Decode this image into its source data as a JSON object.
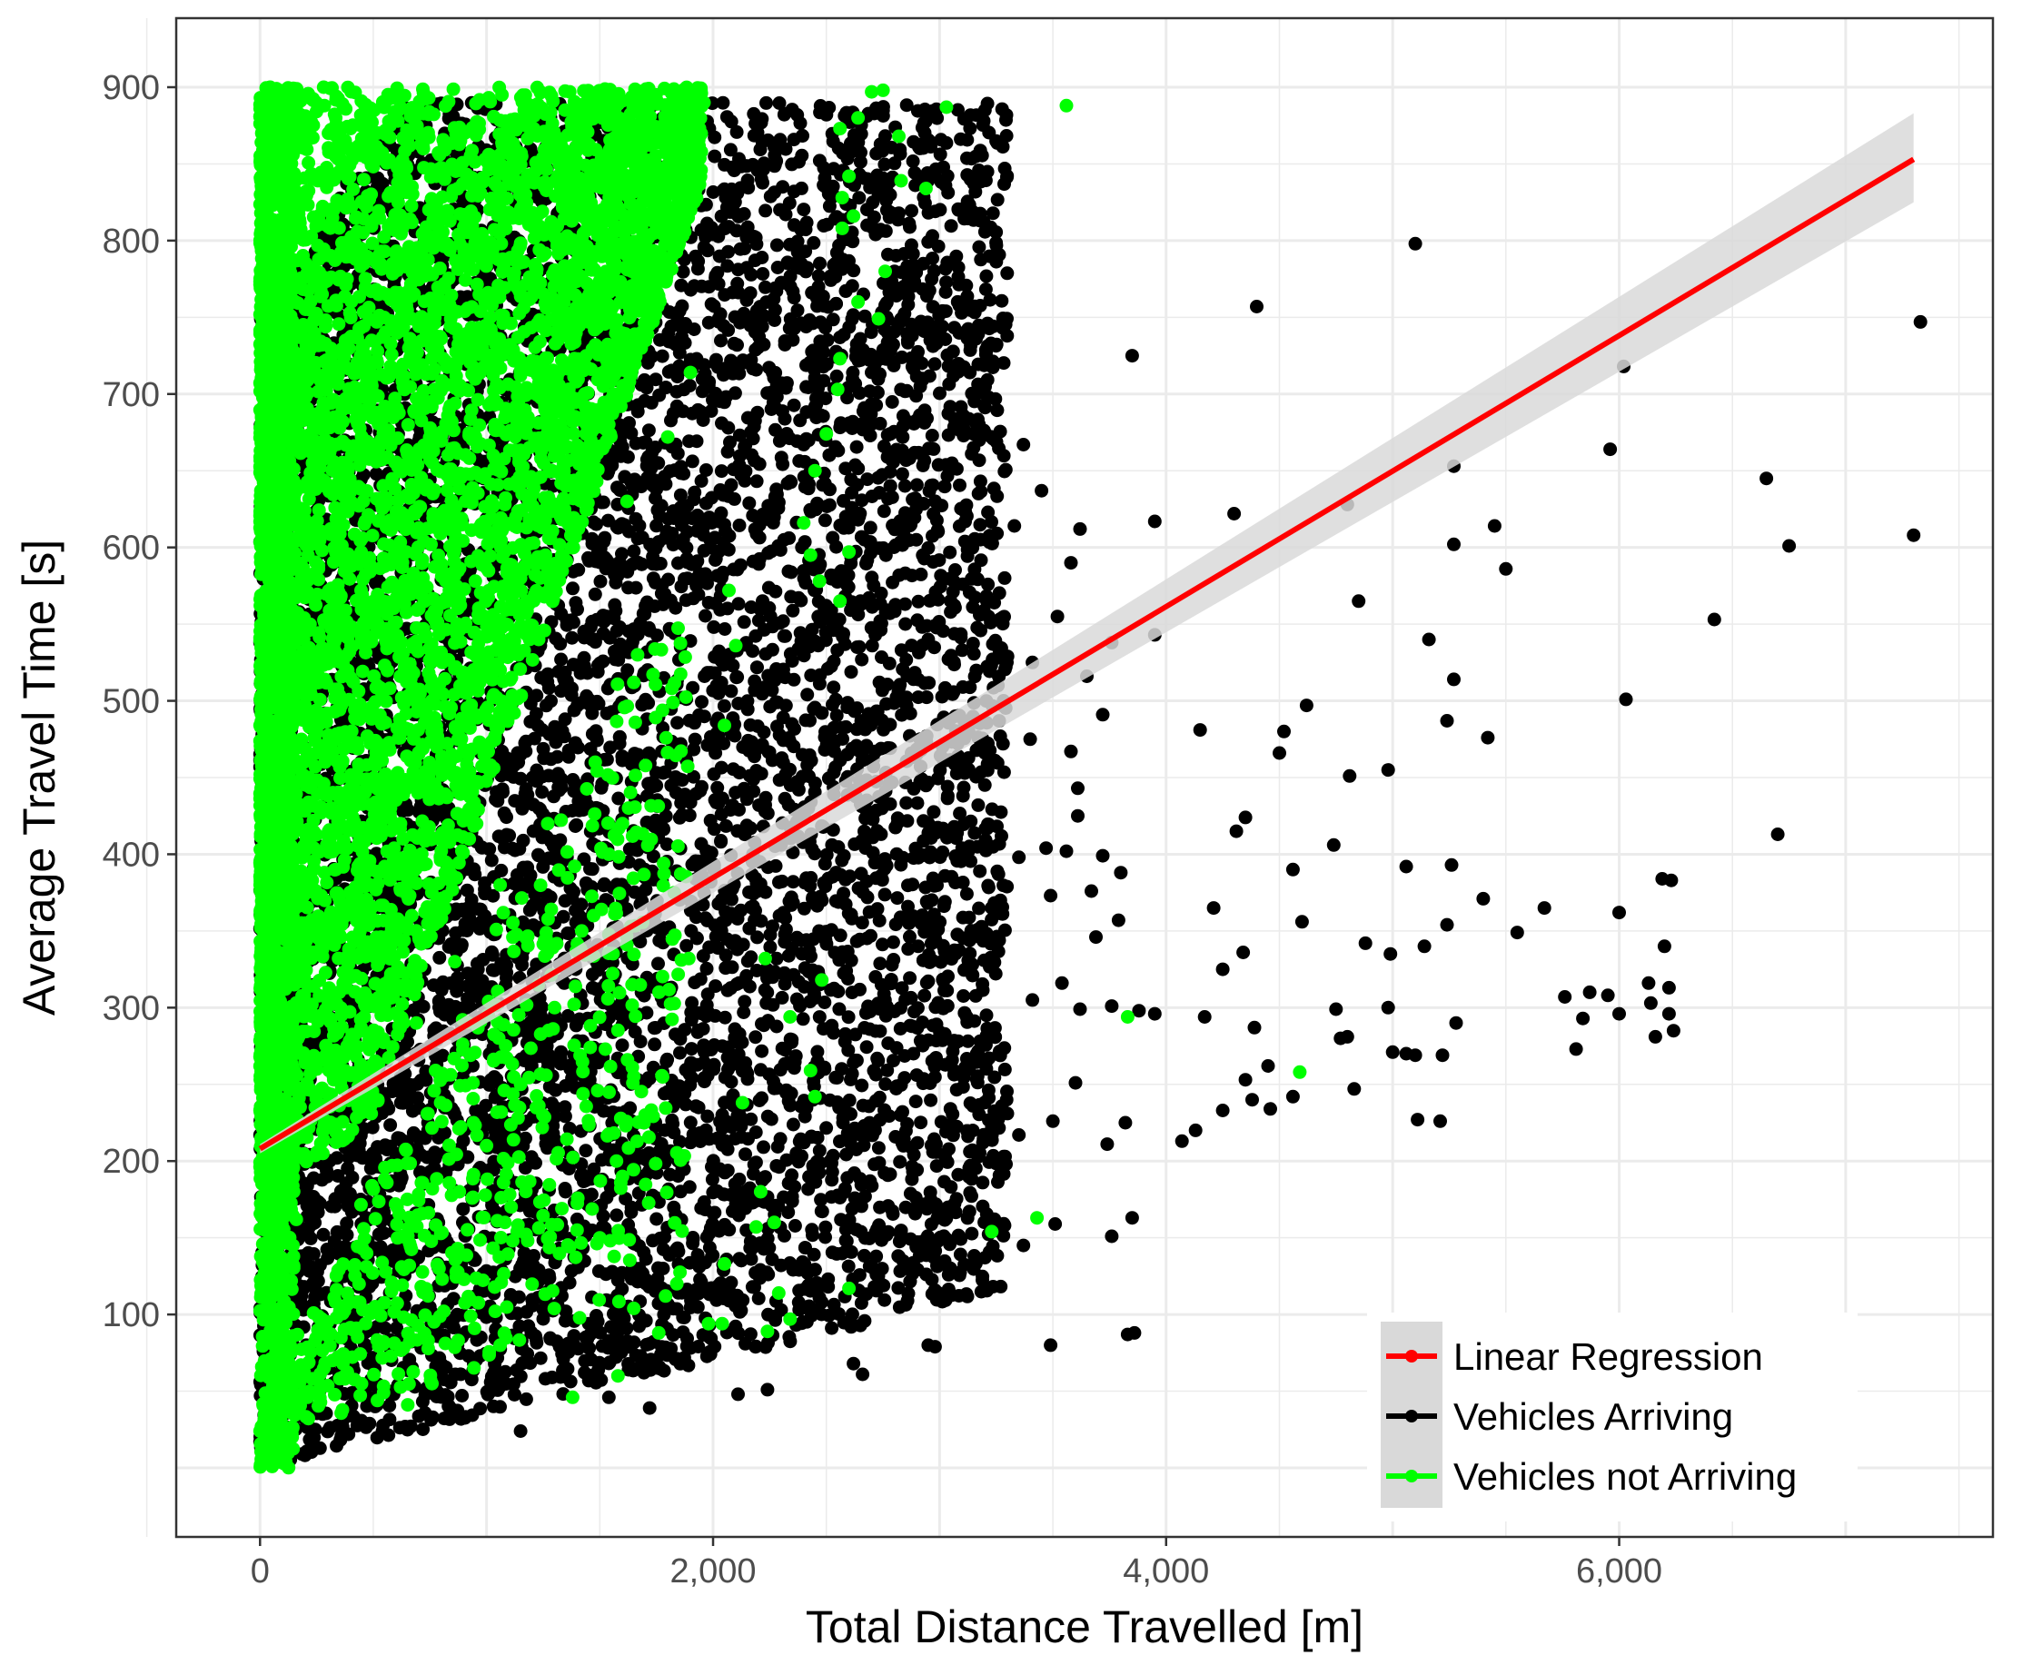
{
  "chart_data": {
    "type": "scatter",
    "xlabel": "Total Distance Travelled [m]",
    "ylabel": "Average Travel Time [s]",
    "xlim": [
      -370,
      7650
    ],
    "ylim": [
      -45,
      945
    ],
    "x_ticks": [
      0,
      2000,
      4000,
      6000
    ],
    "x_tick_labels": [
      "0",
      "2,000",
      "4,000",
      "6,000"
    ],
    "y_ticks": [
      100,
      200,
      300,
      400,
      500,
      600,
      700,
      800,
      900
    ],
    "y_tick_labels": [
      "100",
      "200",
      "300",
      "400",
      "500",
      "600",
      "700",
      "800",
      "900"
    ],
    "grid": true,
    "legend_position": "bottom-right",
    "colors": {
      "arriving": "#000000",
      "not_arriving": "#00ff00",
      "regression": "#ff0000",
      "confidence_band": "#d9d9d9",
      "grid": "#ebebeb",
      "panel_border": "#333333"
    },
    "series": [
      {
        "name": "Vehicles Arriving",
        "kind": "points",
        "color": "#000000",
        "points": [
          [
            3200,
            885
          ],
          [
            5100,
            798
          ],
          [
            4400,
            757
          ],
          [
            3850,
            725
          ],
          [
            6020,
            718
          ],
          [
            7330,
            747
          ],
          [
            5960,
            664
          ],
          [
            6650,
            645
          ],
          [
            5270,
            653
          ],
          [
            4800,
            628
          ],
          [
            4300,
            622
          ],
          [
            3950,
            617
          ],
          [
            7300,
            608
          ],
          [
            6750,
            601
          ],
          [
            5450,
            614
          ],
          [
            5500,
            586
          ],
          [
            5270,
            602
          ],
          [
            4850,
            565
          ],
          [
            6420,
            553
          ],
          [
            5160,
            540
          ],
          [
            3950,
            543
          ],
          [
            6030,
            501
          ],
          [
            5270,
            514
          ],
          [
            5240,
            487
          ],
          [
            4620,
            497
          ],
          [
            4520,
            480
          ],
          [
            4150,
            481
          ],
          [
            5420,
            476
          ],
          [
            4500,
            466
          ],
          [
            3720,
            491
          ],
          [
            4810,
            451
          ],
          [
            4980,
            455
          ],
          [
            6700,
            413
          ],
          [
            4350,
            424
          ],
          [
            4310,
            415
          ],
          [
            4740,
            406
          ],
          [
            5260,
            393
          ],
          [
            5060,
            392
          ],
          [
            4560,
            390
          ],
          [
            3610,
            443
          ],
          [
            6190,
            384
          ],
          [
            6230,
            383
          ],
          [
            5400,
            371
          ],
          [
            5670,
            365
          ],
          [
            5550,
            349
          ],
          [
            4210,
            365
          ],
          [
            4880,
            342
          ],
          [
            5240,
            354
          ],
          [
            6000,
            362
          ],
          [
            5140,
            340
          ],
          [
            4990,
            335
          ],
          [
            4340,
            336
          ],
          [
            4600,
            356
          ],
          [
            6200,
            340
          ],
          [
            6130,
            316
          ],
          [
            6220,
            313
          ],
          [
            5950,
            308
          ],
          [
            5870,
            310
          ],
          [
            5760,
            307
          ],
          [
            4250,
            325
          ],
          [
            3950,
            296
          ],
          [
            4750,
            299
          ],
          [
            4980,
            300
          ],
          [
            6140,
            303
          ],
          [
            6220,
            296
          ],
          [
            6000,
            296
          ],
          [
            5840,
            293
          ],
          [
            5280,
            290
          ],
          [
            4800,
            281
          ],
          [
            4390,
            287
          ],
          [
            4770,
            280
          ],
          [
            4170,
            294
          ],
          [
            5060,
            270
          ],
          [
            5100,
            269
          ],
          [
            5220,
            269
          ],
          [
            4450,
            262
          ],
          [
            4350,
            253
          ],
          [
            5000,
            271
          ],
          [
            4830,
            247
          ],
          [
            4560,
            242
          ],
          [
            4460,
            234
          ],
          [
            4380,
            240
          ],
          [
            4250,
            233
          ],
          [
            4130,
            220
          ],
          [
            4070,
            213
          ],
          [
            5110,
            227
          ],
          [
            5210,
            226
          ],
          [
            5810,
            273
          ],
          [
            6160,
            281
          ],
          [
            6240,
            285
          ],
          [
            3860,
            88
          ],
          [
            3830,
            87
          ],
          [
            3490,
            80
          ],
          [
            2980,
            79
          ],
          [
            2950,
            80
          ],
          [
            2660,
            61
          ],
          [
            2620,
            68
          ],
          [
            2110,
            48
          ],
          [
            2240,
            51
          ],
          [
            1720,
            39
          ],
          [
            1540,
            46
          ],
          [
            1150,
            24
          ],
          [
            2680,
            810
          ],
          [
            2590,
            805
          ],
          [
            2780,
            770
          ],
          [
            3080,
            760
          ],
          [
            3000,
            740
          ],
          [
            2900,
            745
          ],
          [
            3150,
            665
          ],
          [
            3370,
            667
          ],
          [
            3450,
            637
          ],
          [
            3330,
            614
          ],
          [
            3620,
            612
          ],
          [
            3580,
            590
          ],
          [
            3520,
            555
          ],
          [
            3300,
            529
          ],
          [
            3100,
            533
          ],
          [
            2950,
            540
          ],
          [
            3410,
            525
          ],
          [
            3760,
            538
          ],
          [
            3650,
            516
          ],
          [
            3400,
            475
          ],
          [
            3580,
            467
          ],
          [
            3200,
            466
          ],
          [
            3280,
            472
          ],
          [
            3610,
            425
          ],
          [
            3470,
            404
          ],
          [
            3350,
            398
          ],
          [
            3560,
            402
          ],
          [
            3720,
            399
          ],
          [
            3670,
            376
          ],
          [
            3800,
            388
          ],
          [
            3490,
            373
          ],
          [
            3260,
            387
          ],
          [
            3690,
            346
          ],
          [
            3790,
            357
          ],
          [
            3540,
            316
          ],
          [
            3410,
            305
          ],
          [
            3620,
            299
          ],
          [
            3760,
            301
          ],
          [
            3880,
            298
          ],
          [
            3600,
            251
          ],
          [
            3820,
            225
          ],
          [
            3740,
            211
          ],
          [
            3500,
            226
          ],
          [
            3350,
            217
          ],
          [
            3760,
            151
          ],
          [
            3370,
            145
          ],
          [
            3850,
            163
          ],
          [
            3510,
            159
          ]
        ],
        "dense_regions": [
          {
            "wedge": "arrival-fan",
            "x_min": 0,
            "x_max": 3400,
            "y_min": 0,
            "y_max": 890
          }
        ]
      },
      {
        "name": "Vehicles not Arriving",
        "kind": "points",
        "color": "#00ff00",
        "points": [
          [
            3560,
            888
          ],
          [
            3030,
            887
          ],
          [
            2750,
            898
          ],
          [
            2700,
            897
          ],
          [
            2640,
            880
          ],
          [
            2820,
            868
          ],
          [
            2560,
            873
          ],
          [
            2600,
            842
          ],
          [
            2570,
            828
          ],
          [
            2570,
            808
          ],
          [
            2620,
            816
          ],
          [
            2940,
            834
          ],
          [
            2830,
            839
          ],
          [
            2760,
            780
          ],
          [
            2730,
            749
          ],
          [
            2640,
            760
          ],
          [
            2560,
            723
          ],
          [
            2550,
            703
          ],
          [
            2500,
            674
          ],
          [
            2450,
            650
          ],
          [
            2400,
            616
          ],
          [
            2430,
            595
          ],
          [
            2560,
            565
          ],
          [
            2470,
            578
          ],
          [
            2600,
            597
          ],
          [
            2100,
            536
          ],
          [
            2050,
            484
          ],
          [
            2070,
            572
          ],
          [
            2600,
            117
          ],
          [
            3230,
            154
          ],
          [
            3430,
            163
          ],
          [
            4590,
            258
          ],
          [
            3830,
            294
          ],
          [
            2230,
            332
          ],
          [
            2480,
            318
          ],
          [
            2340,
            294
          ],
          [
            2430,
            259
          ],
          [
            2450,
            242
          ],
          [
            2130,
            238
          ],
          [
            2190,
            157
          ],
          [
            2040,
            94
          ],
          [
            2210,
            180
          ],
          [
            2270,
            160
          ],
          [
            2050,
            133
          ],
          [
            2340,
            97
          ],
          [
            2240,
            89
          ],
          [
            2290,
            114
          ],
          [
            1980,
            94
          ],
          [
            1840,
            120
          ],
          [
            1790,
            112
          ],
          [
            1760,
            88
          ],
          [
            1650,
            104
          ],
          [
            1580,
            60
          ],
          [
            1380,
            46
          ],
          [
            1060,
            80
          ],
          [
            930,
            99
          ],
          [
            790,
            130
          ],
          [
            650,
            175
          ],
          [
            560,
            186
          ],
          [
            440,
            108
          ],
          [
            320,
            70
          ],
          [
            260,
            98
          ],
          [
            210,
            46
          ],
          [
            160,
            162
          ],
          [
            130,
            199
          ],
          [
            80,
            144
          ],
          [
            40,
            230
          ],
          [
            30,
            300
          ],
          [
            45,
            420
          ],
          [
            35,
            530
          ],
          [
            50,
            600
          ],
          [
            20,
            670
          ],
          [
            60,
            760
          ],
          [
            30,
            850
          ],
          [
            90,
            895
          ],
          [
            400,
            860
          ],
          [
            750,
            820
          ],
          [
            1100,
            870
          ],
          [
            1450,
            860
          ],
          [
            1700,
            880
          ],
          [
            1850,
            850
          ],
          [
            1960,
            890
          ],
          [
            1850,
            798
          ],
          [
            1700,
            740
          ],
          [
            1500,
            690
          ],
          [
            1350,
            640
          ],
          [
            1150,
            580
          ],
          [
            980,
            520
          ],
          [
            780,
            470
          ],
          [
            620,
            420
          ],
          [
            480,
            360
          ],
          [
            350,
            310
          ],
          [
            250,
            260
          ],
          [
            1230,
            540
          ],
          [
            1380,
            600
          ],
          [
            1620,
            630
          ],
          [
            1800,
            672
          ],
          [
            1900,
            714
          ],
          [
            1480,
            460
          ],
          [
            1270,
            420
          ],
          [
            1060,
            380
          ],
          [
            860,
            330
          ],
          [
            690,
            290
          ],
          [
            520,
            240
          ],
          [
            1650,
            512
          ],
          [
            1300,
            300
          ],
          [
            1150,
            250
          ],
          [
            1000,
            210
          ],
          [
            880,
            180
          ],
          [
            1420,
            350
          ],
          [
            1540,
            400
          ],
          [
            1600,
            420
          ],
          [
            1700,
            230
          ],
          [
            1600,
            190
          ],
          [
            1500,
            150
          ]
        ],
        "dense_regions": [
          {
            "wedge": "upper-left-fan",
            "x_min": 0,
            "x_max": 1900,
            "y_min": 180,
            "y_max": 900
          },
          {
            "wedge": "near-zero-column",
            "x_min": 0,
            "x_max": 150,
            "y_min": 0,
            "y_max": 900
          }
        ]
      },
      {
        "name": "Linear Regression",
        "kind": "line",
        "color": "#ff0000",
        "x": [
          0,
          7300
        ],
        "y": [
          208,
          853
        ],
        "ci_lower": [
          205,
          825
        ],
        "ci_upper": [
          211,
          883
        ]
      }
    ],
    "legend": [
      {
        "label": "Linear Regression",
        "key": "line",
        "color": "#ff0000"
      },
      {
        "label": "Vehicles Arriving",
        "key": "point",
        "color": "#000000"
      },
      {
        "label": "Vehicles not Arriving",
        "key": "point",
        "color": "#00ff00"
      }
    ]
  }
}
